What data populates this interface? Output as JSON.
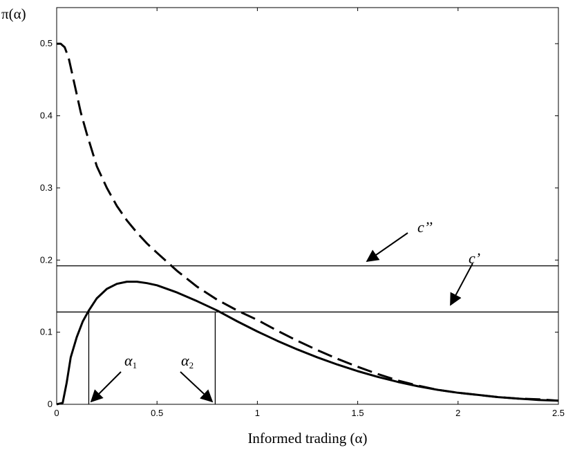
{
  "chart_data": {
    "type": "line",
    "title": "",
    "xlabel": "Informed trading (α)",
    "ylabel": "π(α)",
    "xlim": [
      0,
      2.5
    ],
    "ylim": [
      0,
      0.55
    ],
    "xticks": [
      0,
      0.5,
      1,
      1.5,
      2,
      2.5
    ],
    "xtick_labels": [
      "0",
      "0.5",
      "1",
      "1.5",
      "2",
      "2.5"
    ],
    "yticks": [
      0,
      0.1,
      0.2,
      0.3,
      0.4,
      0.5
    ],
    "ytick_labels": [
      "0",
      "0.1",
      "0.2",
      "0.3",
      "0.4",
      "0.5"
    ],
    "grid": false,
    "series": [
      {
        "style": "dashed",
        "x": [
          0,
          0.02,
          0.04,
          0.06,
          0.08,
          0.1,
          0.12,
          0.15,
          0.2,
          0.25,
          0.3,
          0.35,
          0.4,
          0.45,
          0.5,
          0.6,
          0.7,
          0.8,
          0.9,
          1.0,
          1.1,
          1.2,
          1.3,
          1.4,
          1.5,
          1.6,
          1.7,
          1.8,
          1.9,
          2.0,
          2.1,
          2.2,
          2.3,
          2.4,
          2.5
        ],
        "y": [
          0.5,
          0.5,
          0.495,
          0.48,
          0.455,
          0.43,
          0.405,
          0.375,
          0.33,
          0.3,
          0.275,
          0.255,
          0.238,
          0.223,
          0.21,
          0.185,
          0.163,
          0.145,
          0.13,
          0.117,
          0.102,
          0.088,
          0.075,
          0.063,
          0.052,
          0.042,
          0.033,
          0.026,
          0.02,
          0.016,
          0.013,
          0.01,
          0.008,
          0.007,
          0.005
        ]
      },
      {
        "style": "solid",
        "x": [
          0,
          0.03,
          0.05,
          0.07,
          0.1,
          0.13,
          0.16,
          0.2,
          0.25,
          0.3,
          0.35,
          0.4,
          0.45,
          0.5,
          0.6,
          0.7,
          0.8,
          0.9,
          1.0,
          1.1,
          1.2,
          1.3,
          1.4,
          1.5,
          1.6,
          1.7,
          1.8,
          1.9,
          2.0,
          2.1,
          2.2,
          2.3,
          2.4,
          2.5
        ],
        "y": [
          0,
          0.002,
          0.03,
          0.065,
          0.093,
          0.115,
          0.13,
          0.147,
          0.16,
          0.167,
          0.17,
          0.17,
          0.168,
          0.165,
          0.155,
          0.143,
          0.13,
          0.115,
          0.101,
          0.088,
          0.076,
          0.065,
          0.055,
          0.046,
          0.038,
          0.031,
          0.025,
          0.02,
          0.016,
          0.013,
          0.01,
          0.008,
          0.006,
          0.005
        ]
      }
    ],
    "hlines": [
      {
        "y": 0.192,
        "label": "c’’"
      },
      {
        "y": 0.128,
        "label": "c’"
      }
    ],
    "vlines": [
      {
        "x": 0.16,
        "label": "α1"
      },
      {
        "x": 0.79,
        "label": "α2"
      }
    ],
    "annotations": {
      "c_double_prime": "c’’",
      "c_prime": "c’",
      "alpha1_symbol": "α",
      "alpha1_sub": "1",
      "alpha2_symbol": "α",
      "alpha2_sub": "2"
    }
  }
}
